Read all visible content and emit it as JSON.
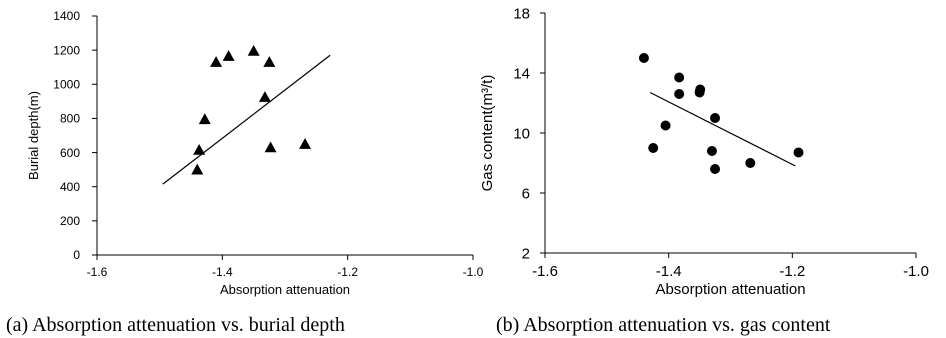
{
  "chart_data": [
    {
      "type": "scatter",
      "caption": "(a) Absorption attenuation vs. burial depth",
      "xlabel": "Absorption attenuation",
      "ylabel": "Burial depth(m)",
      "xlim": [
        -1.6,
        -1.0
      ],
      "ylim": [
        0,
        1400
      ],
      "xticks": [
        "-1.6",
        "-1.4",
        "-1.2",
        "-1.0"
      ],
      "yticks": [
        "0",
        "200",
        "400",
        "600",
        "800",
        "1000",
        "1200",
        "1400"
      ],
      "marker": "triangle",
      "grid": false,
      "points": [
        {
          "x": -1.44,
          "y": 500
        },
        {
          "x": -1.437,
          "y": 615
        },
        {
          "x": -1.428,
          "y": 795
        },
        {
          "x": -1.41,
          "y": 1130
        },
        {
          "x": -1.39,
          "y": 1165
        },
        {
          "x": -1.35,
          "y": 1195
        },
        {
          "x": -1.332,
          "y": 925
        },
        {
          "x": -1.325,
          "y": 1130
        },
        {
          "x": -1.323,
          "y": 630
        },
        {
          "x": -1.268,
          "y": 650
        }
      ],
      "trendline": {
        "x": [
          -1.495,
          -1.228
        ],
        "y": [
          415,
          1170
        ]
      }
    },
    {
      "type": "scatter",
      "caption": "(b) Absorption attenuation vs. gas content",
      "xlabel": "Absorption attenuation",
      "ylabel": "Gas content(m³/t)",
      "xlim": [
        -1.6,
        -1.0
      ],
      "ylim": [
        2,
        18
      ],
      "xticks": [
        "-1.6",
        "-1.4",
        "-1.2",
        "-1.0"
      ],
      "yticks": [
        "2",
        "6",
        "10",
        "14",
        "18"
      ],
      "marker": "circle",
      "grid": false,
      "points": [
        {
          "x": -1.44,
          "y": 15.0
        },
        {
          "x": -1.425,
          "y": 9.0
        },
        {
          "x": -1.405,
          "y": 10.5
        },
        {
          "x": -1.383,
          "y": 13.7
        },
        {
          "x": -1.383,
          "y": 12.6
        },
        {
          "x": -1.35,
          "y": 12.7
        },
        {
          "x": -1.349,
          "y": 12.9
        },
        {
          "x": -1.33,
          "y": 8.8
        },
        {
          "x": -1.325,
          "y": 11.0
        },
        {
          "x": -1.325,
          "y": 7.6
        },
        {
          "x": -1.268,
          "y": 8.0
        },
        {
          "x": -1.19,
          "y": 8.7
        }
      ],
      "trendline": {
        "x": [
          -1.43,
          -1.195
        ],
        "y": [
          12.7,
          7.8
        ]
      }
    }
  ]
}
